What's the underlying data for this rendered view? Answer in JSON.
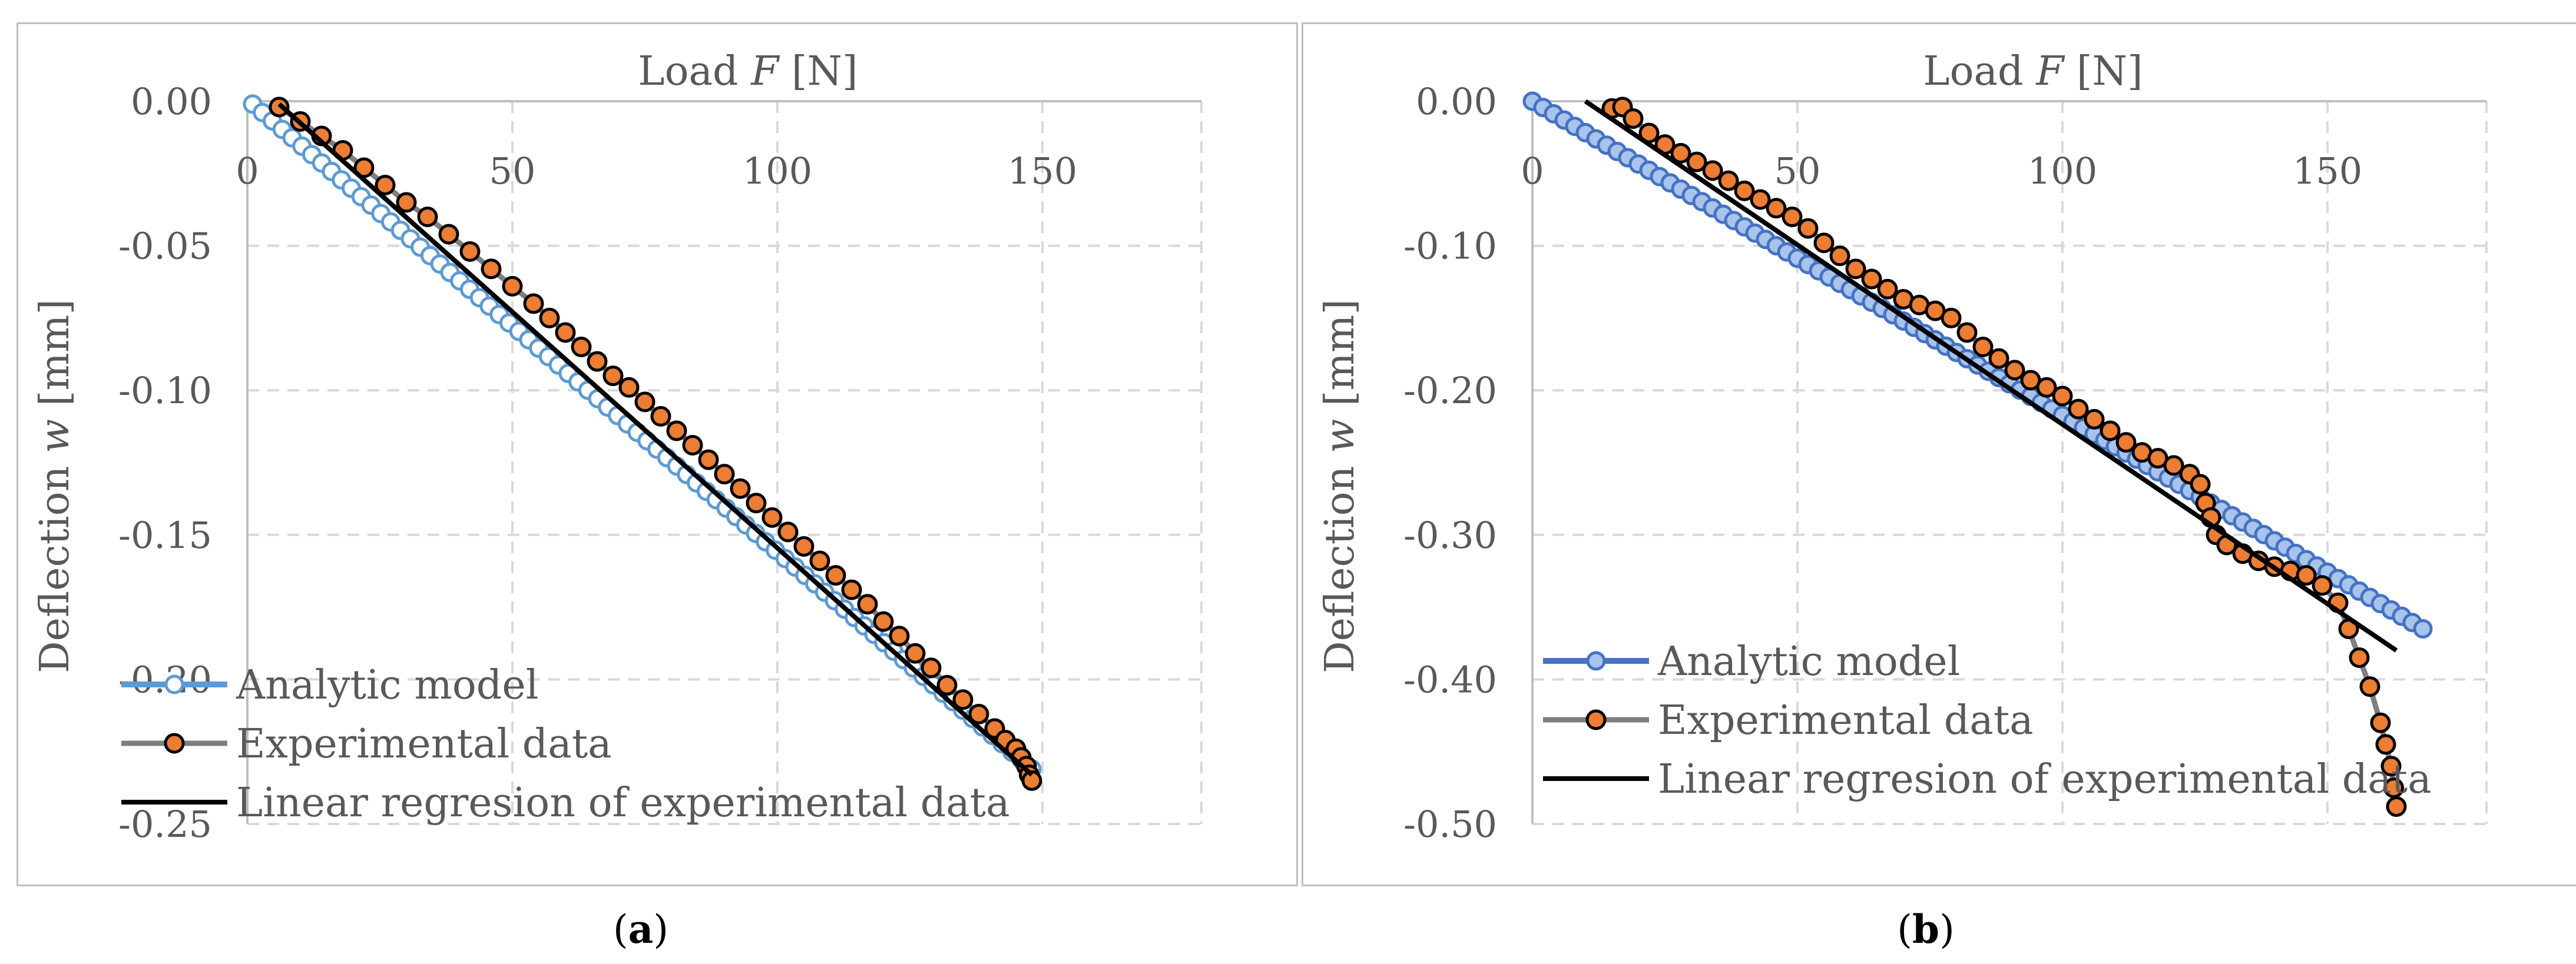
{
  "colors": {
    "analytic_a": "#5b9bd5",
    "analytic_b": "#4472c4",
    "experimental_fill": "#ed7d31",
    "experimental_line": "#7f7f7f",
    "regression": "#000000",
    "grid": "#d9d9d9",
    "axis": "#bfbfbf",
    "text": "#595959"
  },
  "captions": {
    "a_letter": "a",
    "b_letter": "b"
  },
  "chart_data": [
    {
      "id": "a",
      "type": "scatter",
      "title": "",
      "xlabel": "Load F [N]",
      "xlabel_prefix": "Load ",
      "xlabel_var": "F",
      "xlabel_unit": " [N]",
      "ylabel": "Deflection w [mm]",
      "ylabel_prefix": "Deflection ",
      "ylabel_var": "w",
      "ylabel_unit": " [mm]",
      "xlim": [
        0,
        180
      ],
      "ylim": [
        -0.25,
        0
      ],
      "xticks": [
        0,
        50,
        100,
        150
      ],
      "xtick_labels": [
        "0",
        "50",
        "100",
        "150"
      ],
      "yticks": [
        0,
        -0.05,
        -0.1,
        -0.15,
        -0.2,
        -0.25
      ],
      "ytick_labels": [
        "0.00",
        "-0.05",
        "-0.10",
        "-0.15",
        "-0.20",
        "-0.25"
      ],
      "grid": true,
      "legend_position": "bottom-left",
      "series": [
        {
          "name": "Analytic model",
          "kind": "analytic",
          "start": [
            1,
            -0.001
          ],
          "end": [
            148,
            -0.231
          ],
          "count": 80,
          "points": []
        },
        {
          "name": "Experimental data",
          "kind": "experimental",
          "points": [
            [
              6,
              -0.002
            ],
            [
              10,
              -0.007
            ],
            [
              14,
              -0.012
            ],
            [
              18,
              -0.017
            ],
            [
              22,
              -0.023
            ],
            [
              26,
              -0.029
            ],
            [
              30,
              -0.035
            ],
            [
              34,
              -0.04
            ],
            [
              38,
              -0.046
            ],
            [
              42,
              -0.052
            ],
            [
              46,
              -0.058
            ],
            [
              50,
              -0.064
            ],
            [
              54,
              -0.07
            ],
            [
              57,
              -0.075
            ],
            [
              60,
              -0.08
            ],
            [
              63,
              -0.085
            ],
            [
              66,
              -0.09
            ],
            [
              69,
              -0.095
            ],
            [
              72,
              -0.099
            ],
            [
              75,
              -0.104
            ],
            [
              78,
              -0.109
            ],
            [
              81,
              -0.114
            ],
            [
              84,
              -0.119
            ],
            [
              87,
              -0.124
            ],
            [
              90,
              -0.129
            ],
            [
              93,
              -0.134
            ],
            [
              96,
              -0.139
            ],
            [
              99,
              -0.144
            ],
            [
              102,
              -0.149
            ],
            [
              105,
              -0.154
            ],
            [
              108,
              -0.159
            ],
            [
              111,
              -0.164
            ],
            [
              114,
              -0.169
            ],
            [
              117,
              -0.174
            ],
            [
              120,
              -0.18
            ],
            [
              123,
              -0.185
            ],
            [
              126,
              -0.191
            ],
            [
              129,
              -0.196
            ],
            [
              132,
              -0.202
            ],
            [
              135,
              -0.207
            ],
            [
              138,
              -0.212
            ],
            [
              141,
              -0.217
            ],
            [
              143,
              -0.221
            ],
            [
              145,
              -0.224
            ],
            [
              146,
              -0.227
            ],
            [
              147,
              -0.23
            ],
            [
              147.5,
              -0.233
            ],
            [
              148,
              -0.235
            ]
          ]
        },
        {
          "name": "Linear regresion of experimental data",
          "kind": "regression",
          "points": [
            [
              6,
              -0.001
            ],
            [
              148,
              -0.233
            ]
          ]
        }
      ]
    },
    {
      "id": "b",
      "type": "scatter",
      "title": "",
      "xlabel": "Load F [N]",
      "xlabel_prefix": "Load ",
      "xlabel_var": "F",
      "xlabel_unit": " [N]",
      "ylabel": "Deflection w [mm]",
      "ylabel_prefix": "Deflection ",
      "ylabel_var": "w",
      "ylabel_unit": " [mm]",
      "xlim": [
        0,
        180
      ],
      "ylim": [
        -0.5,
        0
      ],
      "xticks": [
        0,
        50,
        100,
        150
      ],
      "xtick_labels": [
        "0",
        "50",
        "100",
        "150"
      ],
      "yticks": [
        0,
        -0.1,
        -0.2,
        -0.3,
        -0.4,
        -0.5
      ],
      "ytick_labels": [
        "0.00",
        "-0.10",
        "-0.20",
        "-0.30",
        "-0.40",
        "-0.50"
      ],
      "grid": true,
      "legend_position": "bottom-left",
      "series": [
        {
          "name": "Analytic model",
          "kind": "analytic",
          "start": [
            0,
            0.0
          ],
          "end": [
            168,
            -0.365
          ],
          "count": 85,
          "points": []
        },
        {
          "name": "Experimental data",
          "kind": "experimental",
          "points": [
            [
              15,
              -0.005
            ],
            [
              17,
              -0.004
            ],
            [
              19,
              -0.012
            ],
            [
              22,
              -0.022
            ],
            [
              25,
              -0.03
            ],
            [
              28,
              -0.036
            ],
            [
              31,
              -0.042
            ],
            [
              34,
              -0.048
            ],
            [
              37,
              -0.055
            ],
            [
              40,
              -0.062
            ],
            [
              43,
              -0.068
            ],
            [
              46,
              -0.074
            ],
            [
              49,
              -0.08
            ],
            [
              52,
              -0.088
            ],
            [
              55,
              -0.098
            ],
            [
              58,
              -0.107
            ],
            [
              61,
              -0.116
            ],
            [
              64,
              -0.123
            ],
            [
              67,
              -0.13
            ],
            [
              70,
              -0.137
            ],
            [
              73,
              -0.141
            ],
            [
              76,
              -0.145
            ],
            [
              79,
              -0.15
            ],
            [
              82,
              -0.16
            ],
            [
              85,
              -0.17
            ],
            [
              88,
              -0.178
            ],
            [
              91,
              -0.186
            ],
            [
              94,
              -0.193
            ],
            [
              97,
              -0.198
            ],
            [
              100,
              -0.204
            ],
            [
              103,
              -0.213
            ],
            [
              106,
              -0.22
            ],
            [
              109,
              -0.228
            ],
            [
              112,
              -0.236
            ],
            [
              115,
              -0.243
            ],
            [
              118,
              -0.247
            ],
            [
              121,
              -0.252
            ],
            [
              124,
              -0.258
            ],
            [
              126,
              -0.265
            ],
            [
              127,
              -0.278
            ],
            [
              128,
              -0.288
            ],
            [
              129,
              -0.3
            ],
            [
              131,
              -0.307
            ],
            [
              134,
              -0.313
            ],
            [
              137,
              -0.318
            ],
            [
              140,
              -0.322
            ],
            [
              143,
              -0.325
            ],
            [
              146,
              -0.328
            ],
            [
              149,
              -0.335
            ],
            [
              152,
              -0.347
            ],
            [
              154,
              -0.365
            ],
            [
              156,
              -0.385
            ],
            [
              158,
              -0.405
            ],
            [
              160,
              -0.43
            ],
            [
              161,
              -0.445
            ],
            [
              162,
              -0.46
            ],
            [
              162.5,
              -0.475
            ],
            [
              163,
              -0.488
            ]
          ]
        },
        {
          "name": "Linear regresion of experimental data",
          "kind": "regression",
          "points": [
            [
              10,
              0.0
            ],
            [
              163,
              -0.38
            ]
          ]
        }
      ]
    }
  ]
}
